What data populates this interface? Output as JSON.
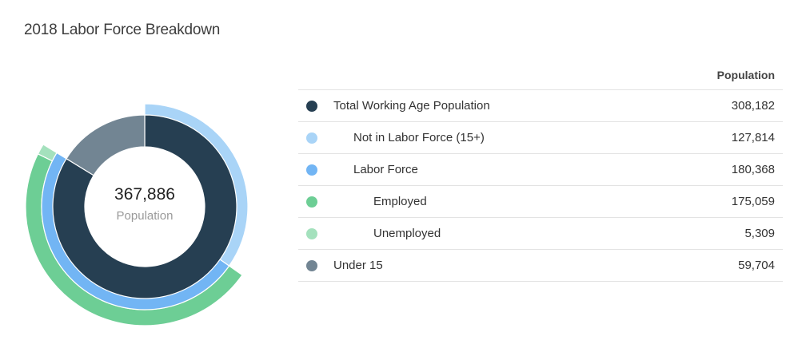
{
  "title": "2018 Labor Force Breakdown",
  "center": {
    "value": "367,886",
    "label": "Population"
  },
  "table": {
    "column_header": "Population",
    "rows": [
      {
        "label": "Total Working Age Population",
        "value": "308,182",
        "color": "#263f52",
        "level": 0
      },
      {
        "label": "Not in Labor Force (15+)",
        "value": "127,814",
        "color": "#a9d4f7",
        "level": 1
      },
      {
        "label": "Labor Force",
        "value": "180,368",
        "color": "#72b5f4",
        "level": 1
      },
      {
        "label": "Employed",
        "value": "175,059",
        "color": "#6dce95",
        "level": 2
      },
      {
        "label": "Unemployed",
        "value": "5,309",
        "color": "#a4e1bd",
        "level": 2
      },
      {
        "label": "Under 15",
        "value": "59,704",
        "color": "#728593",
        "level": 0
      }
    ]
  },
  "chart_data": {
    "type": "pie",
    "title": "2018 Labor Force Breakdown",
    "total": 367886,
    "rings": [
      {
        "name": "Total Working Age Population",
        "values": [
          308182
        ],
        "colors": [
          "#263f52"
        ],
        "start": 0
      },
      {
        "name": "Under 15",
        "values": [
          59704
        ],
        "colors": [
          "#728593"
        ],
        "start": 308182
      },
      {
        "name": "Not in Labor Force (15+) / Labor Force",
        "values": [
          127814,
          180368
        ],
        "colors": [
          "#a9d4f7",
          "#72b5f4"
        ],
        "start": 0
      },
      {
        "name": "Employed / Unemployed",
        "values": [
          175059,
          5309
        ],
        "colors": [
          "#6dce95",
          "#a4e1bd"
        ],
        "start": 127814
      }
    ]
  }
}
